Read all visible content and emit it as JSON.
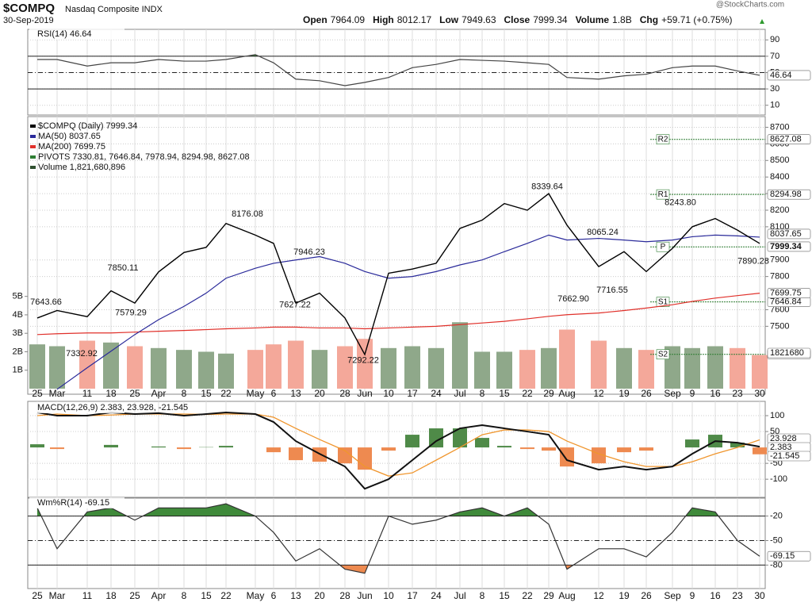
{
  "header": {
    "symbol": "$COMPQ",
    "name": "Nasdaq Composite INDX",
    "date": "30-Sep-2019",
    "quote": [
      {
        "label": "Open",
        "value": "7964.09"
      },
      {
        "label": "High",
        "value": "8012.17"
      },
      {
        "label": "Low",
        "value": "7949.63"
      },
      {
        "label": "Close",
        "value": "7999.34"
      },
      {
        "label": "Volume",
        "value": "1.8B"
      },
      {
        "label": "Chg",
        "value": "+59.71 (+0.75%)"
      }
    ],
    "source": "@StockCharts.com"
  },
  "chart_data": [
    {
      "type": "rsi",
      "title": "RSI(14) 46.64",
      "series": [
        {
          "color": "#444444",
          "values": [
            66,
            66,
            58,
            62,
            62,
            66,
            64,
            64,
            66,
            72,
            62,
            42,
            40,
            34,
            38,
            44,
            56,
            60,
            66,
            65,
            64,
            62,
            60,
            44,
            42,
            46,
            48,
            56,
            58,
            58,
            52,
            46.64
          ]
        }
      ],
      "fill_color": "#3f8a3a",
      "ylim": [
        0,
        100
      ],
      "yticks": [
        90,
        70,
        50,
        30,
        10
      ]
    },
    {
      "type": "price",
      "categories": [
        "25",
        "Mar",
        "11",
        "18",
        "25",
        "Apr",
        "8",
        "15",
        "22",
        "May",
        "6",
        "13",
        "20",
        "28",
        "Jun",
        "10",
        "17",
        "24",
        "Jul",
        "8",
        "15",
        "22",
        "29",
        "Aug",
        "12",
        "19",
        "26",
        "Sep",
        "9",
        "16",
        "23",
        "30"
      ],
      "series": [
        {
          "name": "$COMPQ (Daily) 7999.34",
          "color": "#000000",
          "values": [
            7550,
            7595,
            7558,
            7714,
            7640,
            7828,
            7945,
            7976,
            8120,
            8050,
            8000,
            7640,
            7700,
            7550,
            7330,
            7820,
            7845,
            7880,
            8090,
            8140,
            8240,
            8200,
            8300,
            8110,
            7860,
            7950,
            7830,
            7970,
            8100,
            8150,
            8080,
            7999.34
          ]
        },
        {
          "name": "MA(50) 8037.65",
          "color": "#2a2a9a",
          "values": [
            null,
            7120,
            7250,
            7350,
            7450,
            7540,
            7620,
            7700,
            7790,
            7850,
            7880,
            7900,
            7920,
            7880,
            7830,
            7790,
            7800,
            7830,
            7870,
            7900,
            7950,
            8000,
            8050,
            8020,
            8030,
            8020,
            8010,
            8020,
            8040,
            8050,
            8045,
            8037.65
          ]
        },
        {
          "name": "MA(200) 7699.75",
          "color": "#e0302a",
          "values": [
            7450,
            7455,
            7460,
            7460,
            7465,
            7470,
            7475,
            7480,
            7485,
            7490,
            7495,
            7495,
            7490,
            7490,
            7485,
            7490,
            7495,
            7500,
            7510,
            7520,
            7530,
            7545,
            7560,
            7570,
            7580,
            7595,
            7610,
            7630,
            7650,
            7670,
            7685,
            7699.75
          ]
        }
      ],
      "pivots": {
        "name": "PIVOTS 7330.81, 7646.84, 7978.94, 8294.98, 8627.08",
        "color": "#2e7d32",
        "labels": [
          "S2",
          "S1",
          "P",
          "R1",
          "R2"
        ],
        "values": [
          7330.81,
          7646.84,
          7978.94,
          8294.98,
          8627.08
        ]
      },
      "volume": {
        "name": "Volume 1,821,680,896",
        "colors": [
          "#8fa88a",
          "#f4a89a"
        ],
        "box_label": "1821680",
        "values": [
          2400000000,
          2300000000,
          2600000000,
          2500000000,
          2300000000,
          2200000000,
          2100000000,
          2000000000,
          1900000000,
          2100000000,
          2400000000,
          2600000000,
          2100000000,
          2300000000,
          2700000000,
          2200000000,
          2300000000,
          2200000000,
          3600000000,
          2000000000,
          2000000000,
          2100000000,
          2200000000,
          3200000000,
          2600000000,
          2200000000,
          2100000000,
          2300000000,
          2200000000,
          2300000000,
          2200000000,
          1821680896
        ],
        "vlim": [
          0,
          5200000000
        ],
        "vticks": [
          {
            "value": 5000000000,
            "label": "5B"
          },
          {
            "value": 4000000000,
            "label": "4B"
          },
          {
            "value": 3000000000,
            "label": "3B"
          },
          {
            "value": 2000000000,
            "label": "2B"
          },
          {
            "value": 1000000000,
            "label": "1B"
          }
        ]
      },
      "annotations": {
        "values": [
          7643.66,
          7850.11,
          7579.29,
          7332.92,
          8176.08,
          7946.23,
          7627.22,
          7292.22,
          8339.64,
          8065.24,
          7662.9,
          7716.55,
          8243.8,
          7890.28
        ],
        "value_labels": [
          "7643.66",
          "7850.11",
          "7579.29",
          "7332.92",
          "8176.08",
          "7946.23",
          "7627.22",
          "7292.22",
          "8339.64",
          "8065.24",
          "7662.90",
          "7716.55",
          "8243.80",
          "7890.28"
        ]
      },
      "ylim": [
        7100,
        8750
      ],
      "yticks": [
        8700,
        8600,
        8500,
        8400,
        8300,
        8200,
        8100,
        7900,
        7800,
        7600,
        7500
      ]
    },
    {
      "type": "macd",
      "title": "MACD(12,26,9) 2.383, 23.928, -21.545",
      "series": [
        {
          "color": "#111111",
          "values": [
            110,
            100,
            100,
            110,
            105,
            108,
            100,
            105,
            110,
            105,
            80,
            20,
            -20,
            -60,
            -130,
            -100,
            -40,
            20,
            60,
            70,
            60,
            50,
            40,
            -40,
            -70,
            -60,
            -70,
            -60,
            -20,
            20,
            15,
            2.383
          ]
        },
        {
          "color": "#f0962e",
          "values": [
            100,
            105,
            100,
            102,
            105,
            105,
            105,
            104,
            105,
            105,
            95,
            60,
            25,
            -10,
            -60,
            -90,
            -80,
            -40,
            0,
            40,
            55,
            55,
            50,
            20,
            -20,
            -45,
            -60,
            -60,
            -45,
            -20,
            0,
            23.928
          ]
        },
        {
          "colors": [
            "#4f8a48",
            "#ee8a50"
          ],
          "values": [
            10,
            -5,
            0,
            8,
            0,
            3,
            -5,
            1,
            5,
            0,
            -15,
            -40,
            -45,
            -50,
            -70,
            -10,
            40,
            60,
            60,
            30,
            5,
            -5,
            -10,
            -60,
            -50,
            -15,
            -10,
            0,
            25,
            40,
            15,
            -21.545
          ]
        }
      ],
      "ylim": [
        -152,
        140
      ],
      "yticks": [
        100,
        50,
        -50,
        -100
      ]
    },
    {
      "type": "williams",
      "title": "Wm%R(14) -69.15",
      "series": [
        {
          "color": "#333333",
          "values": [
            -10,
            -60,
            -15,
            -10,
            -25,
            -10,
            -10,
            -10,
            -5,
            -20,
            -40,
            -75,
            -60,
            -85,
            -90,
            -20,
            -30,
            -25,
            -15,
            -10,
            -20,
            -10,
            -30,
            -85,
            -60,
            -60,
            -70,
            -40,
            -10,
            -15,
            -50,
            -69.15
          ]
        }
      ],
      "fill_colors": [
        "#3f8a3a",
        "#ee8a50"
      ],
      "ylim": [
        -100,
        0
      ],
      "yticks": [
        -20,
        -50,
        -80
      ]
    }
  ]
}
